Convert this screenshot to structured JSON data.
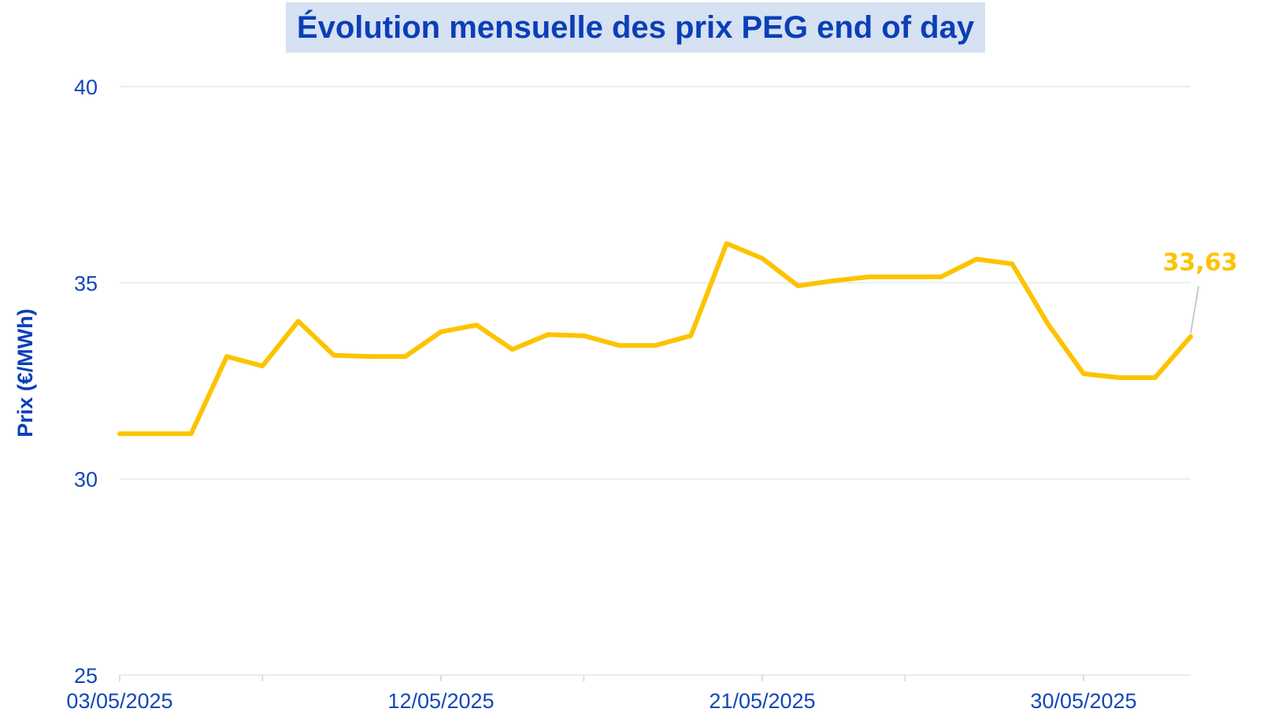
{
  "chart_data": {
    "type": "line",
    "title": "Évolution mensuelle des prix PEG end of day",
    "ylabel": "Prix (€/MWh)",
    "xlabel": "",
    "ylim": [
      25,
      40
    ],
    "yticks": [
      "25",
      "30",
      "35",
      "40"
    ],
    "ytick_values": [
      25,
      30,
      35,
      40
    ],
    "xtick_labels": [
      "03/05/2025",
      "12/05/2025",
      "21/05/2025",
      "30/05/2025"
    ],
    "xtick_dates": [
      "2025-05-03",
      "2025-05-12",
      "2025-05-21",
      "2025-05-30"
    ],
    "x_range": [
      "2025-05-03",
      "2025-06-02"
    ],
    "grid": "horizontal",
    "line_color": "#fdc300",
    "series": [
      {
        "x": [
          "2025-05-03",
          "2025-05-04",
          "2025-05-05",
          "2025-05-06",
          "2025-05-07",
          "2025-05-08",
          "2025-05-09",
          "2025-05-10",
          "2025-05-11",
          "2025-05-12",
          "2025-05-13",
          "2025-05-14",
          "2025-05-15",
          "2025-05-16",
          "2025-05-17",
          "2025-05-18",
          "2025-05-19",
          "2025-05-20",
          "2025-05-21",
          "2025-05-22",
          "2025-05-23",
          "2025-05-24",
          "2025-05-25",
          "2025-05-26",
          "2025-05-27",
          "2025-05-28",
          "2025-05-29",
          "2025-05-30",
          "2025-05-31",
          "2025-06-01",
          "2025-06-02"
        ],
        "values": [
          31.15,
          31.15,
          31.15,
          33.12,
          32.88,
          34.02,
          33.15,
          33.12,
          33.12,
          33.75,
          33.92,
          33.3,
          33.68,
          33.65,
          33.4,
          33.4,
          33.65,
          36.0,
          35.62,
          34.92,
          35.05,
          35.15,
          35.15,
          35.15,
          35.6,
          35.48,
          33.95,
          32.68,
          32.58,
          32.58,
          33.63
        ]
      }
    ],
    "annotation": {
      "label": "33,63",
      "color": "#fdc300"
    }
  }
}
